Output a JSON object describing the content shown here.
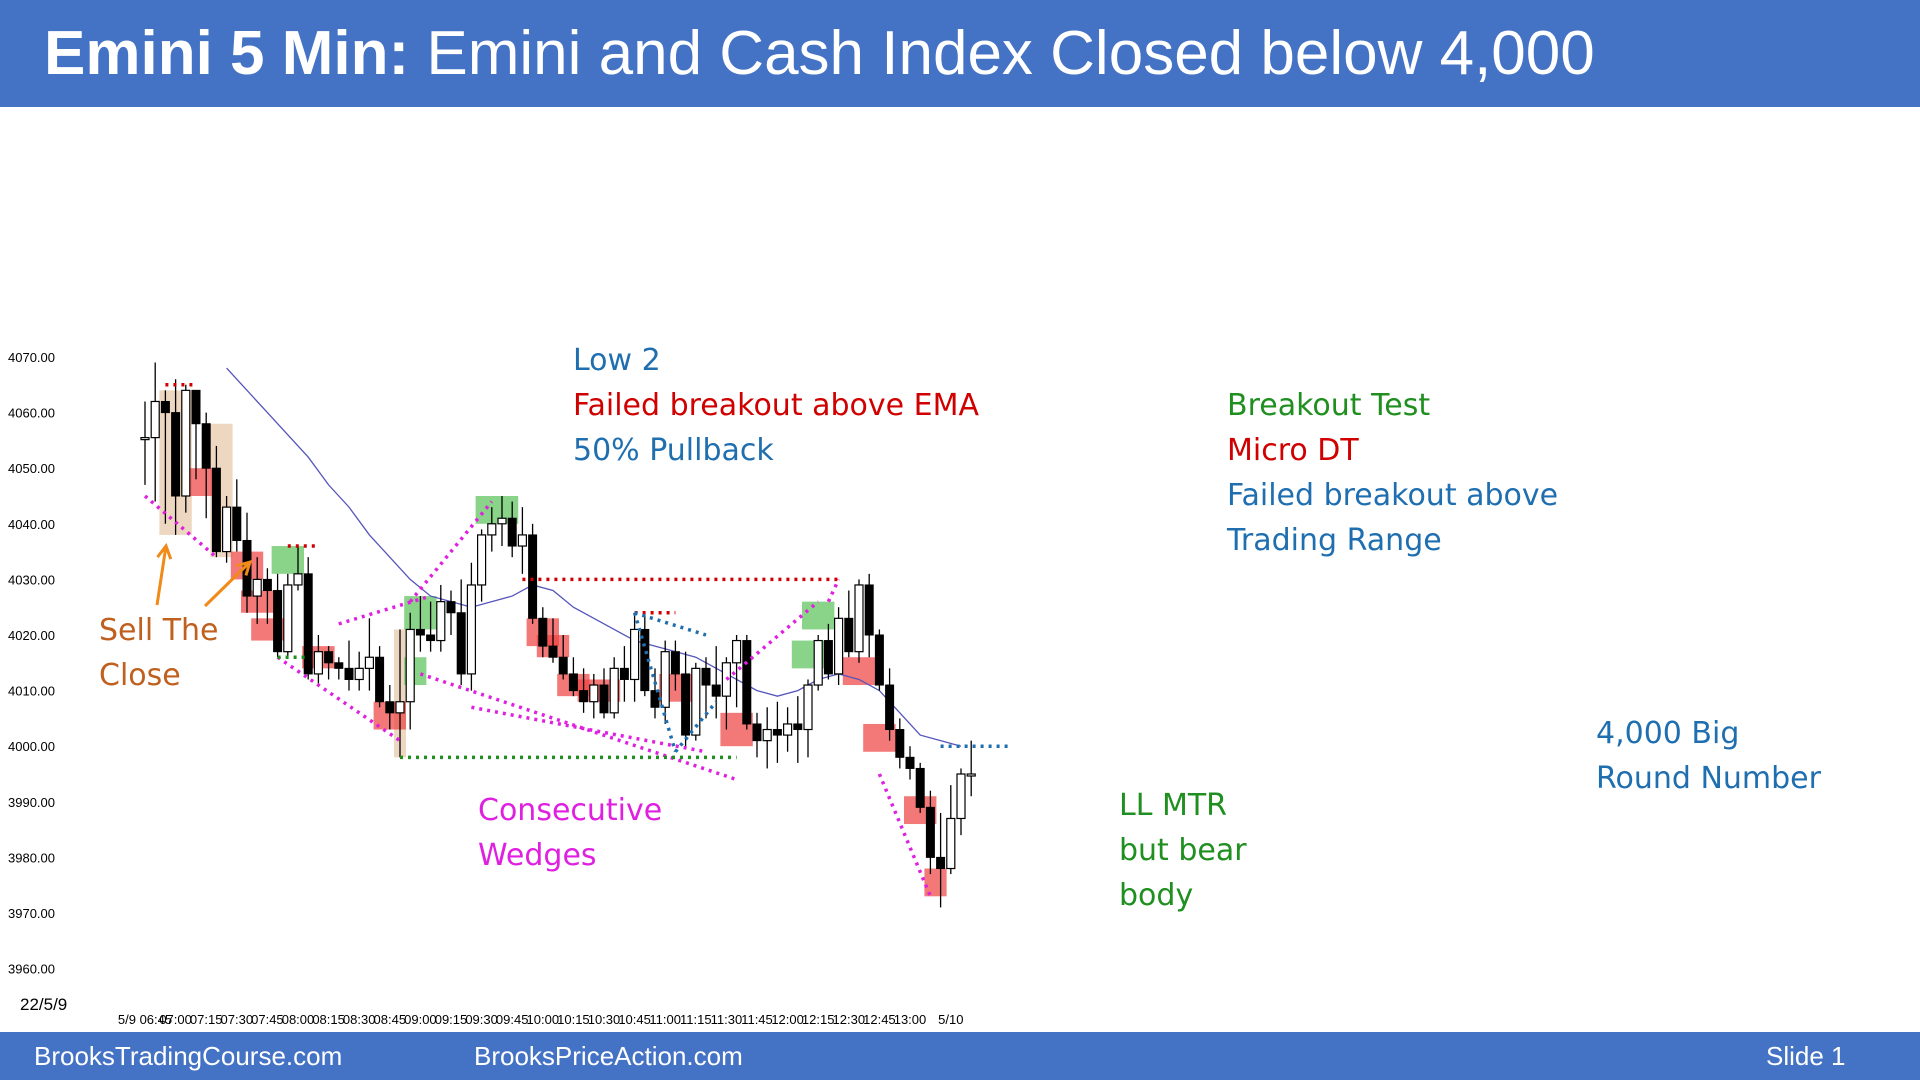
{
  "slide": {
    "title_bold": "Emini 5 Min:",
    "title_rest": "Emini and Cash Index Closed below 4,000",
    "footer_left": "BrooksTradingCourse.com",
    "footer_mid": "BrooksPriceAction.com",
    "footer_right": "Slide  1"
  },
  "colors": {
    "header_bg": "#4472c4",
    "bull_highlight": "#5cc45c",
    "bear_highlight": "#ee4444",
    "tan_highlight": "#e8c8a8",
    "ema": "#5555bb",
    "magenta": "#e020e0",
    "green_text": "#1f8f1f",
    "red_text": "#d00000",
    "blue_text": "#1f6fb0",
    "orange_text": "#c0601f"
  },
  "chart_data": {
    "type": "candlestick",
    "date_label": "22/5/9",
    "ylim": [
      3955,
      4075
    ],
    "y_ticks": [
      "4070.00",
      "4060.00",
      "4050.00",
      "4040.00",
      "4030.00",
      "4020.00",
      "4010.00",
      "4000.00",
      "3990.00",
      "3980.00",
      "3970.00",
      "3960.00"
    ],
    "x_ticks": [
      {
        "bar": 0,
        "label": "5/9 06:45"
      },
      {
        "bar": 3,
        "label": "07:00"
      },
      {
        "bar": 6,
        "label": "07:15"
      },
      {
        "bar": 9,
        "label": "07:30"
      },
      {
        "bar": 12,
        "label": "07:45"
      },
      {
        "bar": 15,
        "label": "08:00"
      },
      {
        "bar": 18,
        "label": "08:15"
      },
      {
        "bar": 21,
        "label": "08:30"
      },
      {
        "bar": 24,
        "label": "08:45"
      },
      {
        "bar": 27,
        "label": "09:00"
      },
      {
        "bar": 30,
        "label": "09:15"
      },
      {
        "bar": 33,
        "label": "09:30"
      },
      {
        "bar": 36,
        "label": "09:45"
      },
      {
        "bar": 39,
        "label": "10:00"
      },
      {
        "bar": 42,
        "label": "10:15"
      },
      {
        "bar": 45,
        "label": "10:30"
      },
      {
        "bar": 48,
        "label": "10:45"
      },
      {
        "bar": 51,
        "label": "11:00"
      },
      {
        "bar": 54,
        "label": "11:15"
      },
      {
        "bar": 57,
        "label": "11:30"
      },
      {
        "bar": 60,
        "label": "11:45"
      },
      {
        "bar": 63,
        "label": "12:00"
      },
      {
        "bar": 66,
        "label": "12:15"
      },
      {
        "bar": 69,
        "label": "12:30"
      },
      {
        "bar": 72,
        "label": "12:45"
      },
      {
        "bar": 75,
        "label": "13:00"
      },
      {
        "bar": 79,
        "label": "5/10"
      }
    ],
    "candles": [
      [
        4055.5,
        4062,
        4047,
        4055.5
      ],
      [
        4055.5,
        4069,
        4044,
        4062
      ],
      [
        4062,
        4064,
        4040,
        4060
      ],
      [
        4060,
        4066,
        4038,
        4045
      ],
      [
        4045,
        4065,
        4042,
        4064
      ],
      [
        4064,
        4063,
        4048,
        4058
      ],
      [
        4058,
        4060,
        4041,
        4050
      ],
      [
        4050,
        4054,
        4034,
        4035
      ],
      [
        4035,
        4045,
        4033,
        4043
      ],
      [
        4043,
        4048,
        4035,
        4037
      ],
      [
        4037,
        4042,
        4024,
        4027
      ],
      [
        4027,
        4034,
        4022,
        4030
      ],
      [
        4030,
        4032,
        4022,
        4028
      ],
      [
        4028,
        4031,
        4016,
        4017
      ],
      [
        4017,
        4031,
        4016,
        4029
      ],
      [
        4029,
        4036,
        4028,
        4031
      ],
      [
        4031,
        4034,
        4012,
        4013
      ],
      [
        4013,
        4020,
        4011,
        4017
      ],
      [
        4017,
        4018,
        4012,
        4015
      ],
      [
        4015,
        4016,
        4012,
        4014
      ],
      [
        4014,
        4019,
        4010,
        4012
      ],
      [
        4012,
        4017,
        4010,
        4014
      ],
      [
        4014,
        4023,
        4010,
        4016
      ],
      [
        4016,
        4018,
        4007,
        4008
      ],
      [
        4008,
        4011,
        4003,
        4006
      ],
      [
        4006,
        4021,
        3998,
        4008
      ],
      [
        4008,
        4024,
        4003,
        4021
      ],
      [
        4021,
        4027,
        4017,
        4020
      ],
      [
        4020,
        4026,
        4017,
        4019
      ],
      [
        4019,
        4029,
        4017,
        4026
      ],
      [
        4026,
        4028,
        4020,
        4024
      ],
      [
        4024,
        4030,
        4011,
        4013
      ],
      [
        4013,
        4033,
        4010,
        4029
      ],
      [
        4029,
        4039,
        4026,
        4038
      ],
      [
        4038,
        4043,
        4035,
        4040
      ],
      [
        4040,
        4045,
        4036,
        4041
      ],
      [
        4041,
        4044,
        4034,
        4036
      ],
      [
        4036,
        4043,
        4031,
        4038
      ],
      [
        4038,
        4040,
        4022,
        4023
      ],
      [
        4023,
        4025,
        4016,
        4018
      ],
      [
        4018,
        4023,
        4015,
        4016
      ],
      [
        4016,
        4020,
        4012,
        4013
      ],
      [
        4013,
        4016,
        4009,
        4010
      ],
      [
        4010,
        4014,
        4006,
        4008
      ],
      [
        4008,
        4013,
        4005,
        4011
      ],
      [
        4011,
        4014,
        4005,
        4006
      ],
      [
        4006,
        4016,
        4005,
        4014
      ],
      [
        4014,
        4018,
        4008,
        4012
      ],
      [
        4012,
        4024,
        4008,
        4021
      ],
      [
        4021,
        4024,
        4009,
        4010
      ],
      [
        4010,
        4014,
        4005,
        4007
      ],
      [
        4007,
        4019,
        4004,
        4017
      ],
      [
        4017,
        4019,
        4010,
        4013
      ],
      [
        4013,
        4017,
        4000,
        4002
      ],
      [
        4002,
        4015,
        4001,
        4014
      ],
      [
        4014,
        4016,
        4005,
        4011
      ],
      [
        4011,
        4018,
        4005,
        4009
      ],
      [
        4009,
        4016,
        4003,
        4015
      ],
      [
        4015,
        4020,
        4007,
        4019
      ],
      [
        4019,
        4020,
        4003,
        4004
      ],
      [
        4004,
        4006,
        3998,
        4001
      ],
      [
        4001,
        4007,
        3996,
        4003
      ],
      [
        4003,
        4008,
        3997,
        4002
      ],
      [
        4002,
        4007,
        3999,
        4004
      ],
      [
        4004,
        4009,
        3997,
        4003
      ],
      [
        4003,
        4012,
        3998,
        4011
      ],
      [
        4011,
        4020,
        4010,
        4019
      ],
      [
        4019,
        4022,
        4012,
        4013
      ],
      [
        4013,
        4025,
        4011,
        4023
      ],
      [
        4023,
        4028,
        4016,
        4017
      ],
      [
        4017,
        4030,
        4015,
        4029
      ],
      [
        4029,
        4031,
        4016,
        4020
      ],
      [
        4020,
        4021,
        4010,
        4011
      ],
      [
        4011,
        4014,
        4001,
        4003
      ],
      [
        4003,
        4005,
        3996,
        3998
      ],
      [
        3998,
        4000,
        3994,
        3996
      ],
      [
        3996,
        3997,
        3988,
        3989
      ],
      [
        3989,
        3992,
        3977,
        3980
      ],
      [
        3980,
        3988,
        3971,
        3978
      ],
      [
        3978,
        3993,
        3977,
        3987
      ],
      [
        3987,
        3996,
        3984,
        3995
      ],
      [
        3995,
        4001,
        3991,
        3995
      ]
    ],
    "ema": [
      [
        8,
        4068
      ],
      [
        10,
        4064
      ],
      [
        12,
        4060
      ],
      [
        14,
        4056
      ],
      [
        16,
        4052
      ],
      [
        18,
        4047
      ],
      [
        20,
        4043
      ],
      [
        22,
        4038
      ],
      [
        24,
        4034
      ],
      [
        26,
        4030
      ],
      [
        28,
        4027
      ],
      [
        30,
        4026
      ],
      [
        32,
        4025
      ],
      [
        34,
        4026
      ],
      [
        36,
        4027
      ],
      [
        38,
        4029
      ],
      [
        40,
        4028
      ],
      [
        42,
        4025
      ],
      [
        44,
        4023
      ],
      [
        46,
        4021
      ],
      [
        48,
        4019
      ],
      [
        50,
        4018
      ],
      [
        52,
        4017
      ],
      [
        54,
        4016
      ],
      [
        56,
        4014
      ],
      [
        58,
        4012
      ],
      [
        60,
        4010
      ],
      [
        62,
        4009
      ],
      [
        64,
        4010
      ],
      [
        66,
        4012
      ],
      [
        68,
        4013
      ],
      [
        70,
        4012
      ],
      [
        72,
        4010
      ],
      [
        74,
        4006
      ],
      [
        76,
        4002
      ],
      [
        78,
        4001
      ],
      [
        80,
        4000
      ]
    ],
    "annotations": [
      {
        "id": "low2",
        "lines": [
          "Low 2"
        ],
        "color": "blue"
      },
      {
        "id": "fb-ema",
        "lines": [
          "Failed breakout above EMA"
        ],
        "color": "red"
      },
      {
        "id": "pullback",
        "lines": [
          "50% Pullback"
        ],
        "color": "blue"
      },
      {
        "id": "bo-test",
        "lines": [
          "Breakout Test"
        ],
        "color": "green"
      },
      {
        "id": "micro-dt",
        "lines": [
          "Micro DT"
        ],
        "color": "red"
      },
      {
        "id": "fb-tr",
        "lines": [
          "Failed breakout above",
          "Trading Range"
        ],
        "color": "blue"
      },
      {
        "id": "stc",
        "lines": [
          "Sell The",
          "Close"
        ],
        "color": "orange"
      },
      {
        "id": "wedges",
        "lines": [
          "Consecutive",
          "Wedges"
        ],
        "color": "magenta"
      },
      {
        "id": "llmtr",
        "lines": [
          "LL MTR",
          "but bear",
          "body"
        ],
        "color": "green"
      },
      {
        "id": "big-round",
        "lines": [
          "4,000 Big",
          "Round Number"
        ],
        "color": "blue"
      }
    ]
  }
}
